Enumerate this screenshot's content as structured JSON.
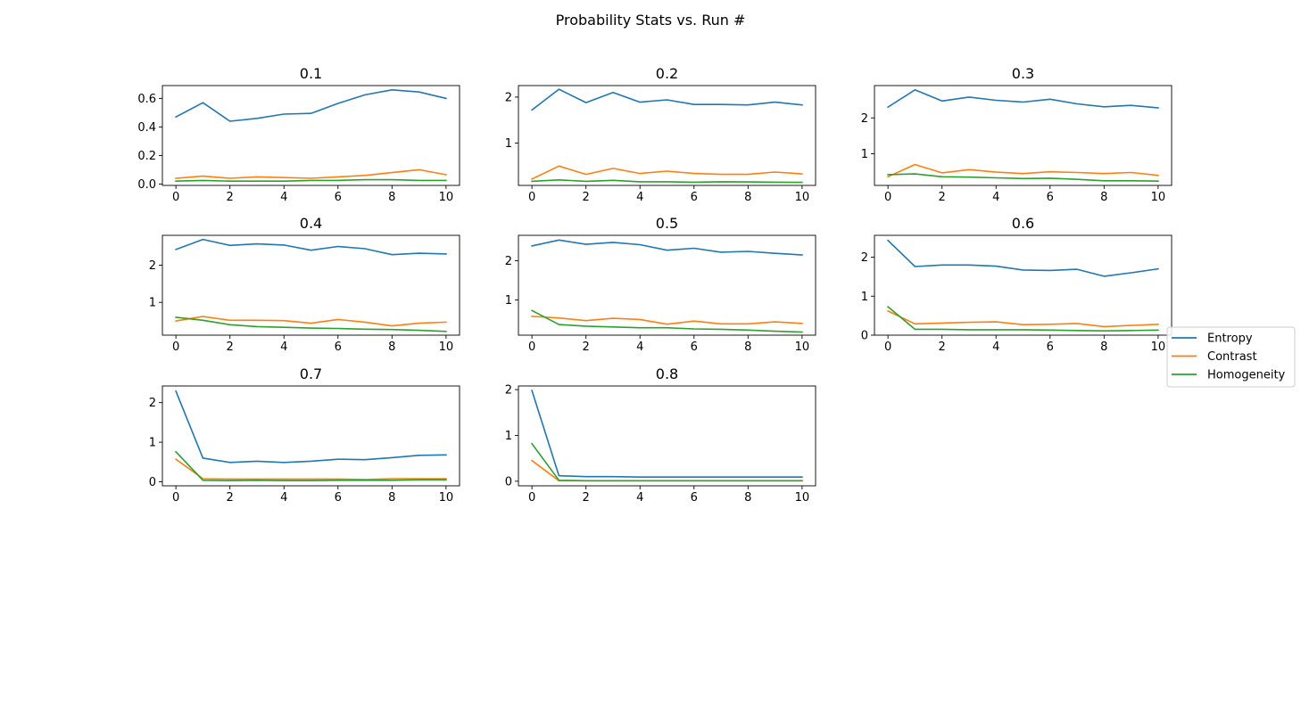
{
  "figure": {
    "title": "Probability Stats vs. Run #"
  },
  "colors": {
    "Entropy": "#1f77b4",
    "Contrast": "#ff7f0e",
    "Homogeneity": "#2ca02c"
  },
  "legend": {
    "placement": "right-center",
    "entries": [
      "Entropy",
      "Contrast",
      "Homogeneity"
    ]
  },
  "chart_data": [
    {
      "type": "line",
      "title": "0.1",
      "x": [
        0,
        1,
        2,
        3,
        4,
        5,
        6,
        7,
        8,
        9,
        10
      ],
      "xticks": [
        0,
        2,
        4,
        6,
        8,
        10
      ],
      "xticklabels": [
        "0",
        "2",
        "4",
        "6",
        "8",
        "10"
      ],
      "xlim": [
        -0.5,
        10.5
      ],
      "ylim": [
        -0.01,
        0.69
      ],
      "yticks": [
        0.0,
        0.2,
        0.4,
        0.6
      ],
      "yticklabels": [
        "0.0",
        "0.2",
        "0.4",
        "0.6"
      ],
      "series": [
        {
          "name": "Entropy",
          "values": [
            0.47,
            0.57,
            0.44,
            0.46,
            0.49,
            0.495,
            0.565,
            0.625,
            0.66,
            0.645,
            0.6
          ]
        },
        {
          "name": "Contrast",
          "values": [
            0.04,
            0.055,
            0.04,
            0.05,
            0.045,
            0.04,
            0.05,
            0.06,
            0.08,
            0.1,
            0.065
          ]
        },
        {
          "name": "Homogeneity",
          "values": [
            0.02,
            0.025,
            0.02,
            0.02,
            0.02,
            0.025,
            0.025,
            0.03,
            0.03,
            0.025,
            0.025
          ]
        }
      ]
    },
    {
      "type": "line",
      "title": "0.2",
      "x": [
        0,
        1,
        2,
        3,
        4,
        5,
        6,
        7,
        8,
        9,
        10
      ],
      "xticks": [
        0,
        2,
        4,
        6,
        8,
        10
      ],
      "xticklabels": [
        "0",
        "2",
        "4",
        "6",
        "8",
        "10"
      ],
      "xlim": [
        -0.5,
        10.5
      ],
      "ylim": [
        0.08,
        2.25
      ],
      "yticks": [
        1,
        2
      ],
      "yticklabels": [
        "1",
        "2"
      ],
      "series": [
        {
          "name": "Entropy",
          "values": [
            1.72,
            2.17,
            1.88,
            2.1,
            1.89,
            1.94,
            1.84,
            1.84,
            1.83,
            1.89,
            1.83
          ]
        },
        {
          "name": "Contrast",
          "values": [
            0.22,
            0.5,
            0.32,
            0.45,
            0.34,
            0.39,
            0.34,
            0.32,
            0.32,
            0.37,
            0.33
          ]
        },
        {
          "name": "Homogeneity",
          "values": [
            0.17,
            0.2,
            0.17,
            0.19,
            0.16,
            0.16,
            0.15,
            0.16,
            0.155,
            0.15,
            0.145
          ]
        }
      ]
    },
    {
      "type": "line",
      "title": "0.3",
      "x": [
        0,
        1,
        2,
        3,
        4,
        5,
        6,
        7,
        8,
        9,
        10
      ],
      "xticks": [
        0,
        2,
        4,
        6,
        8,
        10
      ],
      "xticklabels": [
        "0",
        "2",
        "4",
        "6",
        "8",
        "10"
      ],
      "xlim": [
        -0.5,
        10.5
      ],
      "ylim": [
        0.12,
        2.9
      ],
      "yticks": [
        1,
        2
      ],
      "yticklabels": [
        "1",
        "2"
      ],
      "series": [
        {
          "name": "Entropy",
          "values": [
            2.3,
            2.78,
            2.47,
            2.58,
            2.49,
            2.44,
            2.52,
            2.39,
            2.31,
            2.35,
            2.28
          ]
        },
        {
          "name": "Contrast",
          "values": [
            0.36,
            0.7,
            0.47,
            0.56,
            0.49,
            0.45,
            0.5,
            0.48,
            0.45,
            0.48,
            0.4
          ]
        },
        {
          "name": "Homogeneity",
          "values": [
            0.42,
            0.44,
            0.36,
            0.35,
            0.33,
            0.31,
            0.32,
            0.29,
            0.25,
            0.25,
            0.24
          ]
        }
      ]
    },
    {
      "type": "line",
      "title": "0.4",
      "x": [
        0,
        1,
        2,
        3,
        4,
        5,
        6,
        7,
        8,
        9,
        10
      ],
      "xticks": [
        0,
        2,
        4,
        6,
        8,
        10
      ],
      "xticklabels": [
        "0",
        "2",
        "4",
        "6",
        "8",
        "10"
      ],
      "xlim": [
        -0.5,
        10.5
      ],
      "ylim": [
        0.12,
        2.8
      ],
      "yticks": [
        1,
        2
      ],
      "yticklabels": [
        "1",
        "2"
      ],
      "series": [
        {
          "name": "Entropy",
          "values": [
            2.42,
            2.69,
            2.53,
            2.57,
            2.54,
            2.4,
            2.5,
            2.44,
            2.28,
            2.32,
            2.3
          ]
        },
        {
          "name": "Contrast",
          "values": [
            0.5,
            0.62,
            0.52,
            0.52,
            0.51,
            0.44,
            0.54,
            0.47,
            0.37,
            0.44,
            0.47
          ]
        },
        {
          "name": "Homogeneity",
          "values": [
            0.6,
            0.52,
            0.4,
            0.35,
            0.33,
            0.31,
            0.3,
            0.28,
            0.27,
            0.25,
            0.22
          ]
        }
      ]
    },
    {
      "type": "line",
      "title": "0.5",
      "x": [
        0,
        1,
        2,
        3,
        4,
        5,
        6,
        7,
        8,
        9,
        10
      ],
      "xticks": [
        0,
        2,
        4,
        6,
        8,
        10
      ],
      "xticklabels": [
        "0",
        "2",
        "4",
        "6",
        "8",
        "10"
      ],
      "xlim": [
        -0.5,
        10.5
      ],
      "ylim": [
        0.1,
        2.65
      ],
      "yticks": [
        1,
        2
      ],
      "yticklabels": [
        "1",
        "2"
      ],
      "series": [
        {
          "name": "Entropy",
          "values": [
            2.38,
            2.53,
            2.42,
            2.47,
            2.41,
            2.27,
            2.32,
            2.22,
            2.24,
            2.19,
            2.15
          ]
        },
        {
          "name": "Contrast",
          "values": [
            0.58,
            0.54,
            0.47,
            0.53,
            0.5,
            0.38,
            0.46,
            0.39,
            0.39,
            0.44,
            0.4
          ]
        },
        {
          "name": "Homogeneity",
          "values": [
            0.73,
            0.37,
            0.33,
            0.31,
            0.29,
            0.29,
            0.26,
            0.25,
            0.23,
            0.2,
            0.18
          ]
        }
      ]
    },
    {
      "type": "line",
      "title": "0.6",
      "x": [
        0,
        1,
        2,
        3,
        4,
        5,
        6,
        7,
        8,
        9,
        10
      ],
      "xticks": [
        0,
        2,
        4,
        6,
        8,
        10
      ],
      "xticklabels": [
        "0",
        "2",
        "4",
        "6",
        "8",
        "10"
      ],
      "xlim": [
        -0.5,
        10.5
      ],
      "ylim": [
        0,
        2.56
      ],
      "yticks": [
        0,
        1,
        2
      ],
      "yticklabels": [
        "0",
        "1",
        "2"
      ],
      "series": [
        {
          "name": "Entropy",
          "values": [
            2.43,
            1.76,
            1.8,
            1.8,
            1.77,
            1.67,
            1.66,
            1.69,
            1.51,
            1.6,
            1.7
          ]
        },
        {
          "name": "Contrast",
          "values": [
            0.62,
            0.29,
            0.31,
            0.33,
            0.34,
            0.27,
            0.28,
            0.3,
            0.22,
            0.25,
            0.28
          ]
        },
        {
          "name": "Homogeneity",
          "values": [
            0.73,
            0.15,
            0.15,
            0.14,
            0.14,
            0.14,
            0.13,
            0.12,
            0.11,
            0.12,
            0.13
          ]
        }
      ]
    },
    {
      "type": "line",
      "title": "0.7",
      "x": [
        0,
        1,
        2,
        3,
        4,
        5,
        6,
        7,
        8,
        9,
        10
      ],
      "xticks": [
        0,
        2,
        4,
        6,
        8,
        10
      ],
      "xticklabels": [
        "0",
        "2",
        "4",
        "6",
        "8",
        "10"
      ],
      "xlim": [
        -0.5,
        10.5
      ],
      "ylim": [
        -0.1,
        2.42
      ],
      "yticks": [
        0,
        1,
        2
      ],
      "yticklabels": [
        "0",
        "1",
        "2"
      ],
      "series": [
        {
          "name": "Entropy",
          "values": [
            2.29,
            0.6,
            0.49,
            0.52,
            0.49,
            0.52,
            0.57,
            0.56,
            0.61,
            0.67,
            0.68
          ]
        },
        {
          "name": "Contrast",
          "values": [
            0.57,
            0.08,
            0.07,
            0.07,
            0.07,
            0.07,
            0.07,
            0.06,
            0.08,
            0.08,
            0.08
          ]
        },
        {
          "name": "Homogeneity",
          "values": [
            0.76,
            0.04,
            0.03,
            0.04,
            0.03,
            0.03,
            0.04,
            0.04,
            0.04,
            0.05,
            0.05
          ]
        }
      ]
    },
    {
      "type": "line",
      "title": "0.8",
      "x": [
        0,
        1,
        2,
        3,
        4,
        5,
        6,
        7,
        8,
        9,
        10
      ],
      "xticks": [
        0,
        2,
        4,
        6,
        8,
        10
      ],
      "xticklabels": [
        "0",
        "2",
        "4",
        "6",
        "8",
        "10"
      ],
      "xlim": [
        -0.5,
        10.5
      ],
      "ylim": [
        -0.1,
        2.08
      ],
      "yticks": [
        0,
        1,
        2
      ],
      "yticklabels": [
        "0",
        "1",
        "2"
      ],
      "series": [
        {
          "name": "Entropy",
          "values": [
            1.98,
            0.12,
            0.1,
            0.1,
            0.09,
            0.09,
            0.09,
            0.09,
            0.09,
            0.09,
            0.09
          ]
        },
        {
          "name": "Contrast",
          "values": [
            0.45,
            0.01,
            0.01,
            0.01,
            0.01,
            0.01,
            0.01,
            0.01,
            0.01,
            0.01,
            0.01
          ]
        },
        {
          "name": "Homogeneity",
          "values": [
            0.82,
            0.02,
            0.01,
            0.01,
            0.01,
            0.01,
            0.01,
            0.01,
            0.01,
            0.01,
            0.01
          ]
        }
      ]
    }
  ]
}
